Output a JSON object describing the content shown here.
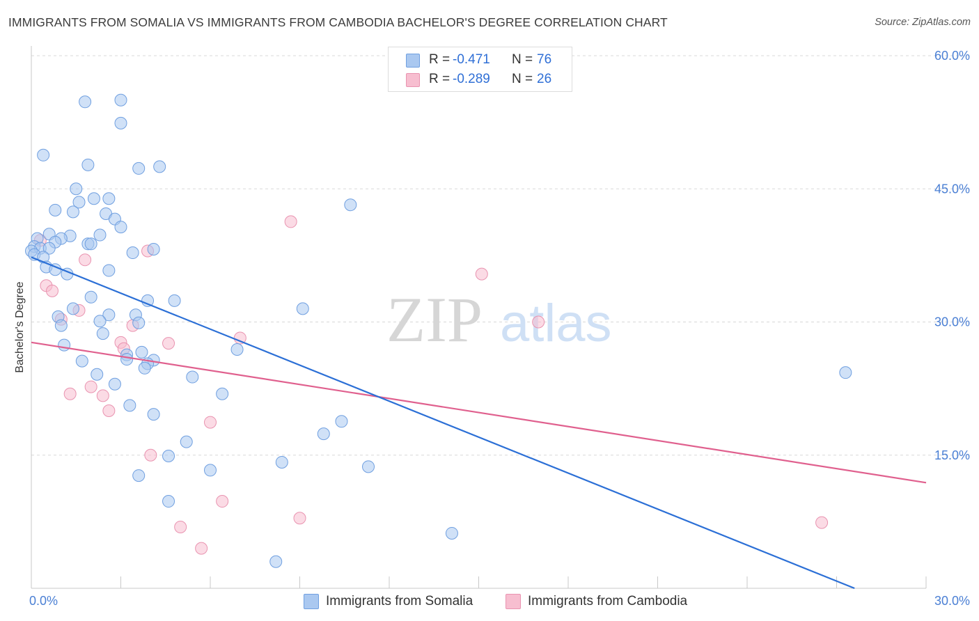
{
  "header": {
    "title": "IMMIGRANTS FROM SOMALIA VS IMMIGRANTS FROM CAMBODIA BACHELOR'S DEGREE CORRELATION CHART",
    "source": "Source: ZipAtlas.com"
  },
  "watermark": {
    "zip": "ZIP",
    "atlas": "atlas"
  },
  "legend": {
    "r_label": "R =",
    "n_label": "N =",
    "somalia": {
      "r": "-0.471",
      "n": "76"
    },
    "cambodia": {
      "r": "-0.289",
      "n": "26"
    }
  },
  "colors": {
    "somalia_fill": "#aac8f0",
    "somalia_stroke": "#6f9fe0",
    "somalia_line": "#2b6fd6",
    "cambodia_fill": "#f7bed0",
    "cambodia_stroke": "#e993b0",
    "cambodia_line": "#e0608e",
    "grid": "#d8d8d8",
    "tick_text": "#4a7fd4"
  },
  "chart_data": {
    "type": "scatter",
    "title": "IMMIGRANTS FROM SOMALIA VS IMMIGRANTS FROM CAMBODIA BACHELOR'S DEGREE CORRELATION CHART",
    "xlabel": "",
    "ylabel": "Bachelor's Degree",
    "xlim": [
      0,
      30
    ],
    "ylim": [
      0,
      60
    ],
    "x_tick_labels": [
      "0.0%",
      "30.0%"
    ],
    "y_ticks": [
      15,
      30,
      45,
      60
    ],
    "y_tick_labels": [
      "15.0%",
      "30.0%",
      "45.0%",
      "60.0%"
    ],
    "grid": true,
    "legend_position": "top-center",
    "series": [
      {
        "name": "Immigrants from Somalia",
        "color": "#aac8f0",
        "points": [
          [
            1.8,
            54.8
          ],
          [
            3.0,
            55.0
          ],
          [
            3.0,
            52.4
          ],
          [
            0.4,
            48.8
          ],
          [
            1.9,
            47.7
          ],
          [
            3.6,
            47.3
          ],
          [
            4.3,
            47.5
          ],
          [
            1.5,
            45.0
          ],
          [
            1.6,
            43.5
          ],
          [
            2.1,
            43.9
          ],
          [
            2.6,
            43.9
          ],
          [
            0.8,
            42.6
          ],
          [
            1.4,
            42.4
          ],
          [
            2.5,
            42.2
          ],
          [
            2.8,
            41.6
          ],
          [
            3.0,
            40.7
          ],
          [
            0.6,
            39.9
          ],
          [
            1.3,
            39.7
          ],
          [
            2.3,
            39.8
          ],
          [
            0.2,
            39.4
          ],
          [
            1.0,
            39.4
          ],
          [
            0.8,
            39.0
          ],
          [
            1.9,
            38.8
          ],
          [
            2.0,
            38.8
          ],
          [
            0.1,
            38.5
          ],
          [
            0.3,
            38.3
          ],
          [
            0.6,
            38.3
          ],
          [
            0.0,
            38.0
          ],
          [
            0.1,
            37.6
          ],
          [
            3.4,
            37.8
          ],
          [
            4.1,
            38.2
          ],
          [
            0.4,
            37.3
          ],
          [
            0.5,
            36.2
          ],
          [
            0.8,
            35.9
          ],
          [
            2.6,
            35.8
          ],
          [
            1.2,
            35.4
          ],
          [
            2.0,
            32.8
          ],
          [
            3.9,
            32.4
          ],
          [
            4.8,
            32.4
          ],
          [
            1.4,
            31.5
          ],
          [
            9.1,
            31.5
          ],
          [
            0.9,
            30.6
          ],
          [
            2.6,
            30.8
          ],
          [
            3.5,
            30.8
          ],
          [
            2.3,
            30.1
          ],
          [
            3.6,
            29.9
          ],
          [
            1.0,
            29.6
          ],
          [
            2.4,
            28.7
          ],
          [
            6.9,
            26.9
          ],
          [
            1.1,
            27.4
          ],
          [
            3.7,
            26.6
          ],
          [
            3.2,
            26.3
          ],
          [
            3.2,
            25.8
          ],
          [
            4.1,
            25.7
          ],
          [
            1.7,
            25.6
          ],
          [
            3.9,
            25.3
          ],
          [
            3.8,
            24.8
          ],
          [
            2.2,
            24.1
          ],
          [
            5.4,
            23.8
          ],
          [
            2.8,
            23.0
          ],
          [
            6.4,
            21.9
          ],
          [
            10.4,
            18.8
          ],
          [
            3.3,
            20.6
          ],
          [
            4.1,
            19.6
          ],
          [
            9.8,
            17.4
          ],
          [
            5.2,
            16.5
          ],
          [
            4.6,
            14.9
          ],
          [
            8.4,
            14.2
          ],
          [
            11.3,
            13.7
          ],
          [
            6.0,
            13.3
          ],
          [
            3.6,
            12.7
          ],
          [
            4.6,
            9.8
          ],
          [
            14.1,
            6.2
          ],
          [
            8.2,
            3.0
          ],
          [
            10.7,
            43.2
          ],
          [
            27.3,
            24.3
          ]
        ],
        "trend": [
          [
            0,
            37.3
          ],
          [
            27.6,
            0
          ]
        ]
      },
      {
        "name": "Immigrants from Cambodia",
        "color": "#f7bed0",
        "points": [
          [
            8.7,
            41.3
          ],
          [
            3.9,
            38.0
          ],
          [
            0.3,
            39.2
          ],
          [
            1.8,
            37.0
          ],
          [
            0.5,
            34.1
          ],
          [
            0.7,
            33.5
          ],
          [
            15.1,
            35.4
          ],
          [
            1.6,
            31.3
          ],
          [
            17.0,
            30.0
          ],
          [
            1.0,
            30.3
          ],
          [
            3.4,
            29.6
          ],
          [
            7.0,
            28.2
          ],
          [
            3.0,
            27.7
          ],
          [
            4.6,
            27.6
          ],
          [
            3.1,
            27.0
          ],
          [
            2.0,
            22.7
          ],
          [
            1.3,
            21.9
          ],
          [
            2.4,
            21.7
          ],
          [
            2.6,
            20.0
          ],
          [
            6.0,
            18.7
          ],
          [
            4.0,
            15.0
          ],
          [
            6.4,
            9.8
          ],
          [
            9.0,
            7.9
          ],
          [
            5.0,
            6.9
          ],
          [
            5.7,
            4.5
          ],
          [
            26.5,
            7.4
          ]
        ],
        "trend": [
          [
            0,
            27.7
          ],
          [
            30,
            11.9
          ]
        ]
      }
    ]
  },
  "bottom_legend": {
    "somalia_label": "Immigrants from Somalia",
    "cambodia_label": "Immigrants from Cambodia"
  }
}
